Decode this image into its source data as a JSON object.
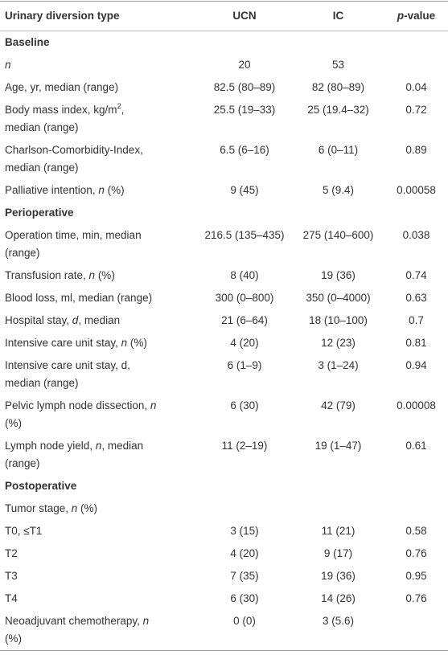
{
  "table": {
    "header": {
      "label": "Urinary diversion type",
      "ucn": "UCN",
      "ic": "IC",
      "p": [
        {
          "text": "p",
          "style": "italic"
        },
        "-value"
      ]
    },
    "rows": [
      {
        "section": "Baseline"
      },
      {
        "label": [
          [
            {
              "text": "n",
              "style": "italic"
            }
          ]
        ],
        "ucn": "20",
        "ic": "53"
      },
      {
        "label": [
          [
            "Age, yr, median (range)"
          ]
        ],
        "ucn": "82.5 (80–89)",
        "ic": "82 (80–89)",
        "p": "0.04"
      },
      {
        "label": [
          [
            "Body mass index, kg/m",
            {
              "text": "2",
              "style": "sup"
            },
            ","
          ],
          [
            "median (range)"
          ]
        ],
        "ucn": "25.5 (19–33)",
        "ic": "25 (19.4–32)",
        "p": "0.72"
      },
      {
        "label": [
          [
            "Charlson-Comorbidity-Index,"
          ],
          [
            "median (range)"
          ]
        ],
        "ucn": "6.5 (6–16)",
        "ic": "6 (0–11)",
        "p": "0.89"
      },
      {
        "label": [
          [
            "Palliative intention, ",
            {
              "text": "n",
              "style": "italic"
            },
            " (%)"
          ]
        ],
        "ucn": "9 (45)",
        "ic": "5 (9.4)",
        "p": "0.00058"
      },
      {
        "section": "Perioperative"
      },
      {
        "label": [
          [
            "Operation time, min, median"
          ],
          [
            "(range)"
          ]
        ],
        "ucn": "216.5 (135–435)",
        "ic": "275 (140–600)",
        "p": "0.038"
      },
      {
        "label": [
          [
            "Transfusion rate, ",
            {
              "text": "n",
              "style": "italic"
            },
            " (%)"
          ]
        ],
        "ucn": "8 (40)",
        "ic": "19 (36)",
        "p": "0.74"
      },
      {
        "label": [
          [
            "Blood loss, ml, median (range)"
          ]
        ],
        "ucn": "300 (0–800)",
        "ic": "350 (0–4000)",
        "p": "0.63"
      },
      {
        "label": [
          [
            "Hospital stay, ",
            {
              "text": "d",
              "style": "italic"
            },
            ", median"
          ]
        ],
        "ucn": "21 (6–64)",
        "ic": "18 (10–100)",
        "p": "0.7"
      },
      {
        "label": [
          [
            "Intensive care unit stay, ",
            {
              "text": "n",
              "style": "italic"
            },
            " (%)"
          ]
        ],
        "ucn": "4 (20)",
        "ic": "12 (23)",
        "p": "0.81"
      },
      {
        "label": [
          [
            "Intensive care unit stay, d,"
          ],
          [
            "median (range)"
          ]
        ],
        "ucn": "6 (1–9)",
        "ic": "3 (1–24)",
        "p": "0.94"
      },
      {
        "label": [
          [
            "Pelvic lymph node dissection, ",
            {
              "text": "n",
              "style": "italic"
            }
          ],
          [
            "(%)"
          ]
        ],
        "ucn": "6 (30)",
        "ic": "42 (79)",
        "p": "0.00008"
      },
      {
        "label": [
          [
            "Lymph node yield, ",
            {
              "text": "n",
              "style": "italic"
            },
            ", median"
          ],
          [
            "(range)"
          ]
        ],
        "ucn": "11 (2–19)",
        "ic": "19 (1–47)",
        "p": "0.61"
      },
      {
        "section": "Postoperative"
      },
      {
        "label": [
          [
            "Tumor stage, ",
            {
              "text": "n",
              "style": "italic"
            },
            " (%)"
          ]
        ]
      },
      {
        "label": [
          [
            "T0, ≤T1"
          ]
        ],
        "ucn": "3 (15)",
        "ic": "11 (21)",
        "p": "0.58"
      },
      {
        "label": [
          [
            "T2"
          ]
        ],
        "ucn": "4 (20)",
        "ic": "9 (17)",
        "p": "0.76"
      },
      {
        "label": [
          [
            "T3"
          ]
        ],
        "ucn": "7 (35)",
        "ic": "19 (36)",
        "p": "0.95"
      },
      {
        "label": [
          [
            "T4"
          ]
        ],
        "ucn": "6 (30)",
        "ic": "14 (26)",
        "p": "0.76"
      },
      {
        "label": [
          [
            "Neoadjuvant chemotherapy, ",
            {
              "text": "n",
              "style": "italic"
            }
          ],
          [
            "(%)"
          ]
        ],
        "ucn": "0 (0)",
        "ic": "3 (5.6)"
      }
    ]
  }
}
